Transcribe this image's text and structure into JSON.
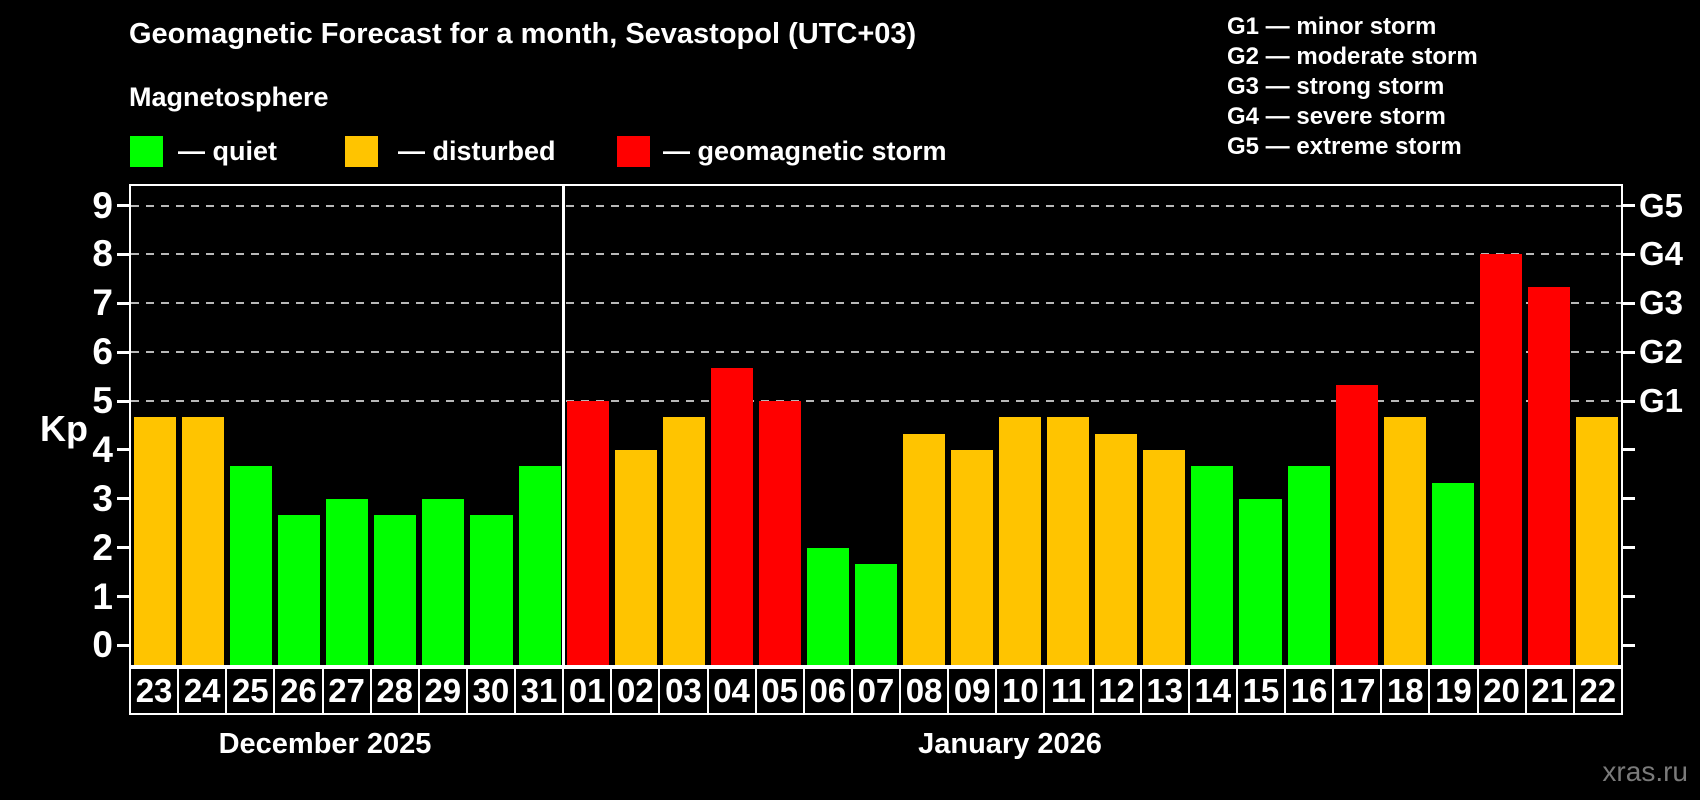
{
  "header": {
    "title": "Geomagnetic Forecast for a month, Sevastopol (UTC+03)",
    "subtitle": "Magnetosphere"
  },
  "legend": {
    "items": [
      {
        "name": "quiet",
        "label": "— quiet",
        "color": "#00ff00"
      },
      {
        "name": "disturbed",
        "label": "— disturbed",
        "color": "#ffc400"
      },
      {
        "name": "storm",
        "label": "— geomagnetic storm",
        "color": "#ff0000"
      }
    ]
  },
  "storm_scale_legend": {
    "lines": [
      "G1 — minor storm",
      "G2 — moderate storm",
      "G3 — strong storm",
      "G4 — severe storm",
      "G5 — extreme storm"
    ]
  },
  "axis": {
    "kp_label": "Kp"
  },
  "watermark": "xras.ru",
  "chart_data": {
    "type": "bar",
    "title": "Geomagnetic Forecast for a month, Sevastopol (UTC+03)",
    "ylabel": "Kp",
    "ylim": [
      0,
      9
    ],
    "yticks": [
      0,
      1,
      2,
      3,
      4,
      5,
      6,
      7,
      8,
      9
    ],
    "grid_levels": [
      5,
      6,
      7,
      8,
      9
    ],
    "grid": "dashed, only at storm levels G1–G5",
    "legend_position": "top-left",
    "right_axis": [
      {
        "value": 5,
        "label": "G1"
      },
      {
        "value": 6,
        "label": "G2"
      },
      {
        "value": 7,
        "label": "G3"
      },
      {
        "value": 8,
        "label": "G4"
      },
      {
        "value": 9,
        "label": "G5"
      }
    ],
    "colors": {
      "quiet": "#00ff00",
      "disturbed": "#ffc400",
      "storm": "#ff0000"
    },
    "months": [
      {
        "label": "December 2025",
        "days": 9
      },
      {
        "label": "January 2026",
        "days": 22
      }
    ],
    "days": [
      {
        "date": "23",
        "kp": 4.67,
        "status": "disturbed"
      },
      {
        "date": "24",
        "kp": 4.67,
        "status": "disturbed"
      },
      {
        "date": "25",
        "kp": 3.67,
        "status": "quiet"
      },
      {
        "date": "26",
        "kp": 2.67,
        "status": "quiet"
      },
      {
        "date": "27",
        "kp": 3.0,
        "status": "quiet"
      },
      {
        "date": "28",
        "kp": 2.67,
        "status": "quiet"
      },
      {
        "date": "29",
        "kp": 3.0,
        "status": "quiet"
      },
      {
        "date": "30",
        "kp": 2.67,
        "status": "quiet"
      },
      {
        "date": "31",
        "kp": 3.67,
        "status": "quiet"
      },
      {
        "date": "01",
        "kp": 5.0,
        "status": "storm"
      },
      {
        "date": "02",
        "kp": 4.0,
        "status": "disturbed"
      },
      {
        "date": "03",
        "kp": 4.67,
        "status": "disturbed"
      },
      {
        "date": "04",
        "kp": 5.67,
        "status": "storm"
      },
      {
        "date": "05",
        "kp": 5.0,
        "status": "storm"
      },
      {
        "date": "06",
        "kp": 2.0,
        "status": "quiet"
      },
      {
        "date": "07",
        "kp": 1.67,
        "status": "quiet"
      },
      {
        "date": "08",
        "kp": 4.33,
        "status": "disturbed"
      },
      {
        "date": "09",
        "kp": 4.0,
        "status": "disturbed"
      },
      {
        "date": "10",
        "kp": 4.67,
        "status": "disturbed"
      },
      {
        "date": "11",
        "kp": 4.67,
        "status": "disturbed"
      },
      {
        "date": "12",
        "kp": 4.33,
        "status": "disturbed"
      },
      {
        "date": "13",
        "kp": 4.0,
        "status": "disturbed"
      },
      {
        "date": "14",
        "kp": 3.67,
        "status": "quiet"
      },
      {
        "date": "15",
        "kp": 3.0,
        "status": "quiet"
      },
      {
        "date": "16",
        "kp": 3.67,
        "status": "quiet"
      },
      {
        "date": "17",
        "kp": 5.33,
        "status": "storm"
      },
      {
        "date": "18",
        "kp": 4.67,
        "status": "disturbed"
      },
      {
        "date": "19",
        "kp": 3.33,
        "status": "quiet"
      },
      {
        "date": "20",
        "kp": 8.0,
        "status": "storm"
      },
      {
        "date": "21",
        "kp": 7.33,
        "status": "storm"
      },
      {
        "date": "22",
        "kp": 4.67,
        "status": "disturbed"
      }
    ]
  }
}
